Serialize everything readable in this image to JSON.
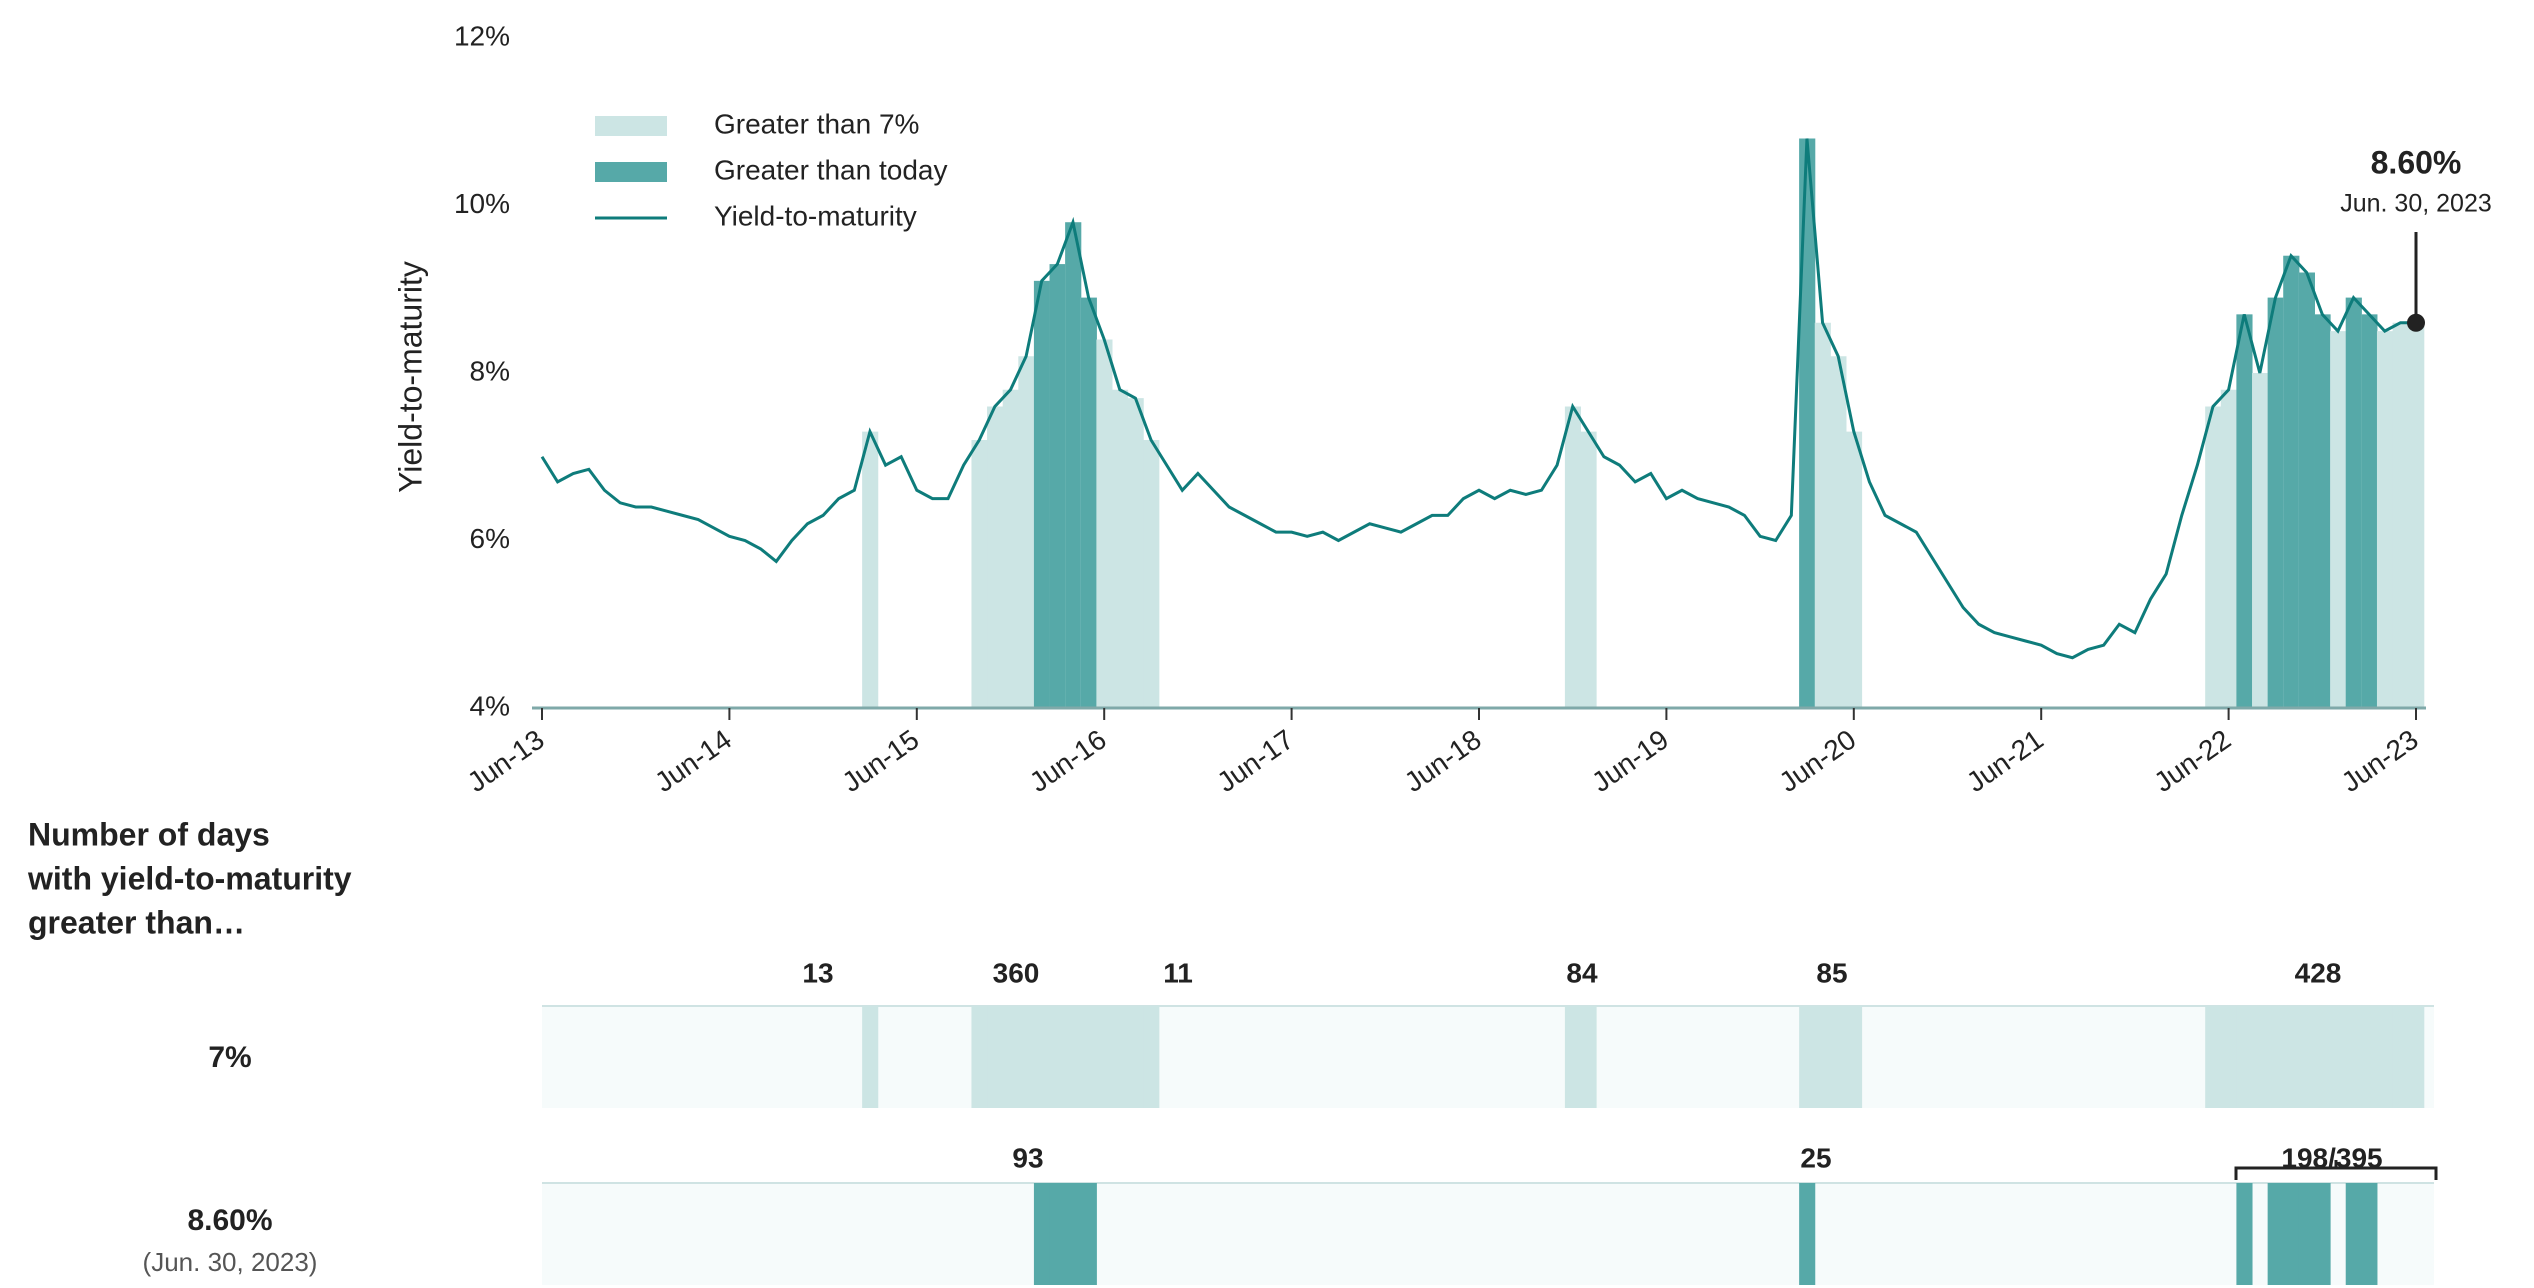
{
  "chart_data": {
    "type": "line",
    "y_label": "Yield-to-maturity",
    "x": [
      "2013-06",
      "2013-07",
      "2013-08",
      "2013-09",
      "2013-10",
      "2013-11",
      "2013-12",
      "2014-01",
      "2014-02",
      "2014-03",
      "2014-04",
      "2014-05",
      "2014-06",
      "2014-07",
      "2014-08",
      "2014-09",
      "2014-10",
      "2014-11",
      "2014-12",
      "2015-01",
      "2015-02",
      "2015-03",
      "2015-04",
      "2015-05",
      "2015-06",
      "2015-07",
      "2015-08",
      "2015-09",
      "2015-10",
      "2015-11",
      "2015-12",
      "2016-01",
      "2016-02",
      "2016-03",
      "2016-04",
      "2016-05",
      "2016-06",
      "2016-07",
      "2016-08",
      "2016-09",
      "2016-10",
      "2016-11",
      "2016-12",
      "2017-01",
      "2017-02",
      "2017-03",
      "2017-04",
      "2017-05",
      "2017-06",
      "2017-07",
      "2017-08",
      "2017-09",
      "2017-10",
      "2017-11",
      "2017-12",
      "2018-01",
      "2018-02",
      "2018-03",
      "2018-04",
      "2018-05",
      "2018-06",
      "2018-07",
      "2018-08",
      "2018-09",
      "2018-10",
      "2018-11",
      "2018-12",
      "2019-01",
      "2019-02",
      "2019-03",
      "2019-04",
      "2019-05",
      "2019-06",
      "2019-07",
      "2019-08",
      "2019-09",
      "2019-10",
      "2019-11",
      "2019-12",
      "2020-01",
      "2020-02",
      "2020-03",
      "2020-04",
      "2020-05",
      "2020-06",
      "2020-07",
      "2020-08",
      "2020-09",
      "2020-10",
      "2020-11",
      "2020-12",
      "2021-01",
      "2021-02",
      "2021-03",
      "2021-04",
      "2021-05",
      "2021-06",
      "2021-07",
      "2021-08",
      "2021-09",
      "2021-10",
      "2021-11",
      "2021-12",
      "2022-01",
      "2022-02",
      "2022-03",
      "2022-04",
      "2022-05",
      "2022-06",
      "2022-07",
      "2022-08",
      "2022-09",
      "2022-10",
      "2022-11",
      "2022-12",
      "2023-01",
      "2023-02",
      "2023-03",
      "2023-04",
      "2023-05",
      "2023-06"
    ],
    "series": [
      {
        "name": "Yield-to-maturity",
        "color": "#0e7c7b",
        "values": [
          7.0,
          6.7,
          6.8,
          6.85,
          6.6,
          6.45,
          6.4,
          6.4,
          6.35,
          6.3,
          6.25,
          6.15,
          6.05,
          6.0,
          5.9,
          5.75,
          6.0,
          6.2,
          6.3,
          6.5,
          6.6,
          7.3,
          6.9,
          7.0,
          6.6,
          6.5,
          6.5,
          6.9,
          7.2,
          7.6,
          7.8,
          8.2,
          9.1,
          9.3,
          9.8,
          8.9,
          8.4,
          7.8,
          7.7,
          7.2,
          6.9,
          6.6,
          6.8,
          6.6,
          6.4,
          6.3,
          6.2,
          6.1,
          6.1,
          6.05,
          6.1,
          6.0,
          6.1,
          6.2,
          6.15,
          6.1,
          6.2,
          6.3,
          6.3,
          6.5,
          6.6,
          6.5,
          6.6,
          6.55,
          6.6,
          6.9,
          7.6,
          7.3,
          7.0,
          6.9,
          6.7,
          6.8,
          6.5,
          6.6,
          6.5,
          6.45,
          6.4,
          6.3,
          6.05,
          6.0,
          6.3,
          10.8,
          8.6,
          8.2,
          7.3,
          6.7,
          6.3,
          6.2,
          6.1,
          5.8,
          5.5,
          5.2,
          5.0,
          4.9,
          4.85,
          4.8,
          4.75,
          4.65,
          4.6,
          4.7,
          4.75,
          5.0,
          4.9,
          5.3,
          5.6,
          6.3,
          6.9,
          7.6,
          7.8,
          8.7,
          8.0,
          8.9,
          9.4,
          9.2,
          8.7,
          8.5,
          8.9,
          8.7,
          8.5,
          8.6,
          8.6
        ]
      }
    ],
    "xlim": [
      "2013-06",
      "2023-06"
    ],
    "xticks": [
      {
        "value": "2013-06",
        "label": "Jun-13"
      },
      {
        "value": "2014-06",
        "label": "Jun-14"
      },
      {
        "value": "2015-06",
        "label": "Jun-15"
      },
      {
        "value": "2016-06",
        "label": "Jun-16"
      },
      {
        "value": "2017-06",
        "label": "Jun-17"
      },
      {
        "value": "2018-06",
        "label": "Jun-18"
      },
      {
        "value": "2019-06",
        "label": "Jun-19"
      },
      {
        "value": "2020-06",
        "label": "Jun-20"
      },
      {
        "value": "2021-06",
        "label": "Jun-21"
      },
      {
        "value": "2022-06",
        "label": "Jun-22"
      },
      {
        "value": "2023-06",
        "label": "Jun-23"
      }
    ],
    "ylim": [
      4,
      12
    ],
    "yticks": [
      {
        "value": 4,
        "label": "4%"
      },
      {
        "value": 6,
        "label": "6%"
      },
      {
        "value": 8,
        "label": "8%"
      },
      {
        "value": 10,
        "label": "10%"
      },
      {
        "value": 12,
        "label": "12%"
      }
    ],
    "thresholds": [
      {
        "value": 7,
        "label": "7%",
        "legend": "Greater than 7%",
        "color": "#cce5e4",
        "counts": [
          13,
          360,
          11,
          84,
          85,
          428
        ]
      },
      {
        "value": 8.6,
        "label": "8.60%",
        "note": "(Jun. 30, 2023)",
        "legend": "Greater than today",
        "color": "#56a9a8",
        "counts": [
          93,
          25,
          "198/395"
        ]
      }
    ],
    "annotation_date": "Jun. 30, 2023",
    "strip_title": [
      "Number of days",
      "with yield-to-maturity",
      "greater than…"
    ]
  }
}
